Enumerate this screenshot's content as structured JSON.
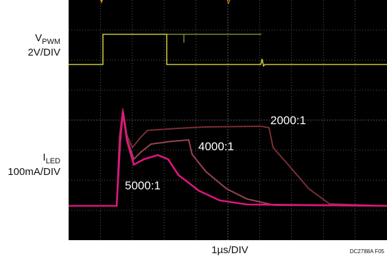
{
  "labels": {
    "vpwm": {
      "symbol": "V",
      "subscript": "PWM",
      "scale": "2V/DIV"
    },
    "iled": {
      "symbol": "I",
      "subscript": "LED",
      "scale": "100mA/DIV"
    },
    "traces": [
      "2000:1",
      "4000:1",
      "5000:1"
    ],
    "timebase": "1µs/DIV",
    "figure_id": "DC2788A F05"
  }
}
